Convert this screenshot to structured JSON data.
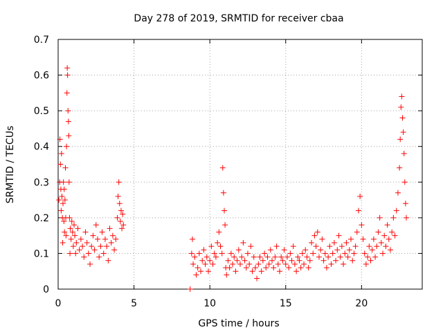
{
  "chart_data": {
    "type": "scatter",
    "title": "Day 278 of 2019, SRMTID for receiver cbaa",
    "xlabel": "GPS time / hours",
    "ylabel": "SRMTID / TECUs",
    "xlim": [
      0,
      24
    ],
    "ylim": [
      0,
      0.7
    ],
    "xticks": [
      0,
      5,
      10,
      15,
      20
    ],
    "xtick_labels": [
      "0",
      "5",
      "10",
      "15",
      "20"
    ],
    "yticks": [
      0,
      0.1,
      0.2,
      0.3,
      0.4,
      0.5,
      0.6,
      0.7
    ],
    "ytick_labels": [
      "0",
      "0.1",
      "0.2",
      "0.3",
      "0.4",
      "0.5",
      "0.6",
      "0.7"
    ],
    "grid": true,
    "marker": "+",
    "color": "#ff0000",
    "series": [
      {
        "name": "SRMTID",
        "points": [
          [
            0.05,
            0.25
          ],
          [
            0.1,
            0.3
          ],
          [
            0.12,
            0.42
          ],
          [
            0.15,
            0.35
          ],
          [
            0.18,
            0.28
          ],
          [
            0.2,
            0.22
          ],
          [
            0.22,
            0.38
          ],
          [
            0.25,
            0.26
          ],
          [
            0.28,
            0.2
          ],
          [
            0.3,
            0.13
          ],
          [
            0.32,
            0.24
          ],
          [
            0.35,
            0.3
          ],
          [
            0.38,
            0.19
          ],
          [
            0.4,
            0.28
          ],
          [
            0.42,
            0.16
          ],
          [
            0.45,
            0.25
          ],
          [
            0.48,
            0.34
          ],
          [
            0.5,
            0.2
          ],
          [
            0.52,
            0.15
          ],
          [
            0.55,
            0.4
          ],
          [
            0.58,
            0.55
          ],
          [
            0.6,
            0.62
          ],
          [
            0.62,
            0.6
          ],
          [
            0.65,
            0.5
          ],
          [
            0.68,
            0.47
          ],
          [
            0.7,
            0.43
          ],
          [
            0.72,
            0.3
          ],
          [
            0.75,
            0.2
          ],
          [
            0.78,
            0.1
          ],
          [
            0.8,
            0.17
          ],
          [
            0.85,
            0.14
          ],
          [
            0.9,
            0.19
          ],
          [
            0.95,
            0.16
          ],
          [
            1.0,
            0.12
          ],
          [
            1.05,
            0.18
          ],
          [
            1.1,
            0.15
          ],
          [
            1.15,
            0.1
          ],
          [
            1.2,
            0.13
          ],
          [
            1.3,
            0.17
          ],
          [
            1.4,
            0.11
          ],
          [
            1.5,
            0.14
          ],
          [
            1.6,
            0.12
          ],
          [
            1.7,
            0.09
          ],
          [
            1.8,
            0.16
          ],
          [
            1.9,
            0.13
          ],
          [
            2.0,
            0.1
          ],
          [
            2.1,
            0.07
          ],
          [
            2.2,
            0.12
          ],
          [
            2.3,
            0.15
          ],
          [
            2.4,
            0.11
          ],
          [
            2.5,
            0.18
          ],
          [
            2.6,
            0.14
          ],
          [
            2.7,
            0.09
          ],
          [
            2.8,
            0.12
          ],
          [
            2.9,
            0.16
          ],
          [
            3.0,
            0.1
          ],
          [
            3.1,
            0.14
          ],
          [
            3.2,
            0.12
          ],
          [
            3.3,
            0.08
          ],
          [
            3.4,
            0.17
          ],
          [
            3.5,
            0.13
          ],
          [
            3.6,
            0.15
          ],
          [
            3.7,
            0.11
          ],
          [
            3.8,
            0.14
          ],
          [
            3.9,
            0.2
          ],
          [
            3.95,
            0.26
          ],
          [
            4.0,
            0.3
          ],
          [
            4.05,
            0.24
          ],
          [
            4.1,
            0.19
          ],
          [
            4.15,
            0.22
          ],
          [
            4.2,
            0.17
          ],
          [
            4.25,
            0.21
          ],
          [
            4.3,
            0.18
          ],
          [
            8.7,
            0.0
          ],
          [
            8.8,
            0.1
          ],
          [
            8.85,
            0.14
          ],
          [
            8.9,
            0.07
          ],
          [
            9.0,
            0.09
          ],
          [
            9.1,
            0.04
          ],
          [
            9.2,
            0.06
          ],
          [
            9.3,
            0.1
          ],
          [
            9.4,
            0.05
          ],
          [
            9.5,
            0.08
          ],
          [
            9.6,
            0.11
          ],
          [
            9.7,
            0.07
          ],
          [
            9.8,
            0.09
          ],
          [
            9.9,
            0.05
          ],
          [
            10.0,
            0.08
          ],
          [
            10.1,
            0.12
          ],
          [
            10.2,
            0.07
          ],
          [
            10.3,
            0.1
          ],
          [
            10.4,
            0.09
          ],
          [
            10.5,
            0.13
          ],
          [
            10.6,
            0.16
          ],
          [
            10.7,
            0.12
          ],
          [
            10.8,
            0.1
          ],
          [
            10.85,
            0.34
          ],
          [
            10.9,
            0.27
          ],
          [
            10.95,
            0.22
          ],
          [
            11.0,
            0.18
          ],
          [
            11.05,
            0.06
          ],
          [
            11.1,
            0.04
          ],
          [
            11.2,
            0.08
          ],
          [
            11.3,
            0.06
          ],
          [
            11.4,
            0.1
          ],
          [
            11.5,
            0.07
          ],
          [
            11.6,
            0.09
          ],
          [
            11.7,
            0.05
          ],
          [
            11.8,
            0.08
          ],
          [
            11.9,
            0.11
          ],
          [
            12.0,
            0.07
          ],
          [
            12.1,
            0.09
          ],
          [
            12.2,
            0.13
          ],
          [
            12.3,
            0.08
          ],
          [
            12.4,
            0.06
          ],
          [
            12.5,
            0.1
          ],
          [
            12.6,
            0.07
          ],
          [
            12.7,
            0.12
          ],
          [
            12.8,
            0.05
          ],
          [
            12.9,
            0.09
          ],
          [
            13.0,
            0.06
          ],
          [
            13.1,
            0.03
          ],
          [
            13.2,
            0.07
          ],
          [
            13.3,
            0.09
          ],
          [
            13.4,
            0.05
          ],
          [
            13.5,
            0.08
          ],
          [
            13.6,
            0.1
          ],
          [
            13.7,
            0.06
          ],
          [
            13.8,
            0.09
          ],
          [
            13.9,
            0.07
          ],
          [
            14.0,
            0.11
          ],
          [
            14.1,
            0.08
          ],
          [
            14.2,
            0.06
          ],
          [
            14.3,
            0.09
          ],
          [
            14.4,
            0.12
          ],
          [
            14.5,
            0.07
          ],
          [
            14.6,
            0.05
          ],
          [
            14.7,
            0.09
          ],
          [
            14.8,
            0.08
          ],
          [
            14.9,
            0.11
          ],
          [
            15.0,
            0.07
          ],
          [
            15.1,
            0.09
          ],
          [
            15.2,
            0.06
          ],
          [
            15.3,
            0.1
          ],
          [
            15.4,
            0.08
          ],
          [
            15.5,
            0.12
          ],
          [
            15.6,
            0.07
          ],
          [
            15.7,
            0.05
          ],
          [
            15.8,
            0.09
          ],
          [
            15.9,
            0.08
          ],
          [
            16.0,
            0.06
          ],
          [
            16.1,
            0.1
          ],
          [
            16.2,
            0.07
          ],
          [
            16.3,
            0.11
          ],
          [
            16.4,
            0.09
          ],
          [
            16.5,
            0.06
          ],
          [
            16.6,
            0.08
          ],
          [
            16.7,
            0.13
          ],
          [
            16.8,
            0.1
          ],
          [
            16.9,
            0.15
          ],
          [
            17.0,
            0.12
          ],
          [
            17.1,
            0.16
          ],
          [
            17.2,
            0.09
          ],
          [
            17.3,
            0.11
          ],
          [
            17.4,
            0.14
          ],
          [
            17.5,
            0.08
          ],
          [
            17.6,
            0.1
          ],
          [
            17.7,
            0.06
          ],
          [
            17.8,
            0.09
          ],
          [
            17.9,
            0.12
          ],
          [
            18.0,
            0.07
          ],
          [
            18.1,
            0.1
          ],
          [
            18.2,
            0.13
          ],
          [
            18.3,
            0.08
          ],
          [
            18.4,
            0.11
          ],
          [
            18.5,
            0.15
          ],
          [
            18.6,
            0.09
          ],
          [
            18.7,
            0.12
          ],
          [
            18.8,
            0.07
          ],
          [
            18.9,
            0.1
          ],
          [
            19.0,
            0.13
          ],
          [
            19.1,
            0.09
          ],
          [
            19.2,
            0.11
          ],
          [
            19.3,
            0.14
          ],
          [
            19.4,
            0.08
          ],
          [
            19.5,
            0.1
          ],
          [
            19.6,
            0.12
          ],
          [
            19.7,
            0.16
          ],
          [
            19.8,
            0.22
          ],
          [
            19.9,
            0.26
          ],
          [
            20.0,
            0.18
          ],
          [
            20.1,
            0.14
          ],
          [
            20.2,
            0.1
          ],
          [
            20.3,
            0.07
          ],
          [
            20.4,
            0.09
          ],
          [
            20.5,
            0.12
          ],
          [
            20.6,
            0.08
          ],
          [
            20.7,
            0.11
          ],
          [
            20.8,
            0.14
          ],
          [
            20.9,
            0.09
          ],
          [
            21.0,
            0.12
          ],
          [
            21.1,
            0.16
          ],
          [
            21.2,
            0.2
          ],
          [
            21.3,
            0.13
          ],
          [
            21.4,
            0.1
          ],
          [
            21.5,
            0.15
          ],
          [
            21.6,
            0.12
          ],
          [
            21.7,
            0.18
          ],
          [
            21.8,
            0.14
          ],
          [
            21.9,
            0.11
          ],
          [
            22.0,
            0.16
          ],
          [
            22.1,
            0.2
          ],
          [
            22.2,
            0.15
          ],
          [
            22.3,
            0.22
          ],
          [
            22.4,
            0.27
          ],
          [
            22.5,
            0.34
          ],
          [
            22.55,
            0.42
          ],
          [
            22.6,
            0.51
          ],
          [
            22.65,
            0.54
          ],
          [
            22.7,
            0.48
          ],
          [
            22.75,
            0.44
          ],
          [
            22.8,
            0.38
          ],
          [
            22.85,
            0.3
          ],
          [
            22.9,
            0.24
          ],
          [
            22.95,
            0.2
          ]
        ]
      }
    ]
  }
}
